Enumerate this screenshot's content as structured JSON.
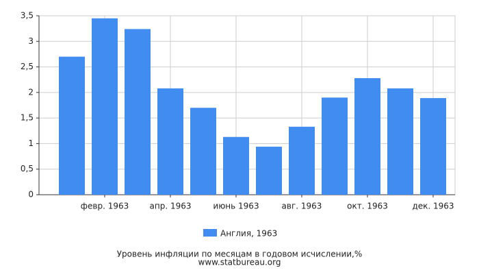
{
  "chart_data": {
    "type": "bar",
    "title": "Уровень инфляции по месяцам в годовом исчислении,%",
    "source": "www.statbureau.org",
    "categories": [
      null,
      "февр. 1963",
      null,
      "апр. 1963",
      null,
      "июнь 1963",
      null,
      "авг. 1963",
      null,
      "окт. 1963",
      null,
      "дек. 1963"
    ],
    "series": [
      {
        "name": "Англия, 1963",
        "color": "#418cf0",
        "values": [
          2.7,
          3.45,
          3.24,
          2.08,
          1.7,
          1.13,
          0.94,
          1.33,
          1.9,
          2.28,
          2.08,
          1.89
        ]
      }
    ],
    "ylim": [
      0,
      3.5
    ],
    "yticks": [
      0,
      {
        "value": 0.5,
        "label": "0,5"
      },
      1,
      {
        "value": 1.5,
        "label": "1,5"
      },
      2,
      {
        "value": 2.5,
        "label": "2,5"
      },
      3,
      {
        "value": 3.5,
        "label": "3,5"
      }
    ],
    "grid": true
  }
}
